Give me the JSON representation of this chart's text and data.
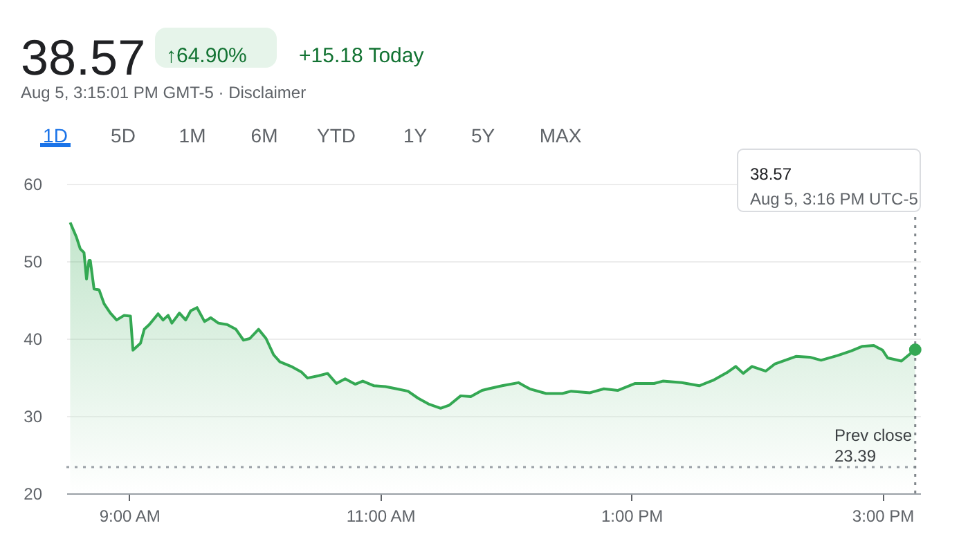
{
  "chart_data": {
    "type": "area",
    "title": "38.57",
    "annotations": [
      "↑64.90%",
      "+15.18 Today",
      "Aug 5, 3:15:01 PM GMT-5 · Disclaimer",
      "1D",
      "5D",
      "1M",
      "6M",
      "YTD",
      "1Y",
      "5Y",
      "MAX",
      "38.57",
      "Aug 5, 3:16 PM UTC-5",
      "23.39"
    ],
    "x": [
      8.53,
      8.58,
      8.61,
      8.64,
      8.66,
      8.68,
      8.69,
      8.72,
      8.76,
      8.8,
      8.85,
      8.9,
      8.96,
      9.01,
      9.03,
      9.09,
      9.12,
      9.16,
      9.23,
      9.27,
      9.31,
      9.34,
      9.4,
      9.45,
      9.49,
      9.54,
      9.6,
      9.65,
      9.71,
      9.78,
      9.85,
      9.91,
      9.96,
      10.03,
      10.09,
      10.15,
      10.2,
      10.29,
      10.37,
      10.42,
      10.51,
      10.58,
      10.65,
      10.72,
      10.8,
      10.86,
      10.95,
      11.04,
      11.13,
      11.22,
      11.3,
      11.39,
      11.48,
      11.55,
      11.64,
      11.72,
      11.81,
      11.86,
      11.97,
      12.1,
      12.19,
      12.32,
      12.45,
      12.52,
      12.67,
      12.78,
      12.89,
      13.03,
      13.18,
      13.25,
      13.4,
      13.54,
      13.65,
      13.76,
      13.83,
      13.89,
      13.96,
      14.07,
      14.14,
      14.31,
      14.42,
      14.51,
      14.64,
      14.75,
      14.84,
      14.93,
      15.0,
      15.04,
      15.15,
      15.26
    ],
    "series": [
      {
        "color": "#34a853",
        "values": [
          55.0,
          53.1,
          51.6,
          51.1,
          47.7,
          50.1,
          50.1,
          46.4,
          46.3,
          44.5,
          43.3,
          42.4,
          43.0,
          42.9,
          38.5,
          39.4,
          41.2,
          41.8,
          43.2,
          42.4,
          43.0,
          42.0,
          43.3,
          42.4,
          43.6,
          44.0,
          42.2,
          42.7,
          42.0,
          41.8,
          41.2,
          39.8,
          40.0,
          41.2,
          40.0,
          37.9,
          37.0,
          36.4,
          35.7,
          34.9,
          35.2,
          35.5,
          34.2,
          34.8,
          34.1,
          34.5,
          33.9,
          33.8,
          33.5,
          33.2,
          32.3,
          31.5,
          31.0,
          31.4,
          32.6,
          32.5,
          33.3,
          33.5,
          33.9,
          34.3,
          33.5,
          32.9,
          32.9,
          33.2,
          33.0,
          33.5,
          33.3,
          34.2,
          34.2,
          34.5,
          34.3,
          33.9,
          34.6,
          35.6,
          36.4,
          35.5,
          36.4,
          35.8,
          36.7,
          37.7,
          37.6,
          37.2,
          37.8,
          38.4,
          39.0,
          39.1,
          38.5,
          37.5,
          37.1,
          38.57
        ]
      }
    ],
    "xlim": [
      8.5,
      15.3
    ],
    "xticks": [
      {
        "value": 9,
        "label": "9:00 AM"
      },
      {
        "value": 11,
        "label": "11:00 AM"
      },
      {
        "value": 13,
        "label": "1:00 PM"
      },
      {
        "value": 15,
        "label": "3:00 PM"
      }
    ],
    "ylim": [
      20,
      60
    ],
    "yticks": [
      20,
      30,
      40,
      50,
      60
    ],
    "grid": "y",
    "ref_lines": [
      {
        "axis": "y",
        "value": 23.39,
        "label": "Prev close",
        "color": "#9aa0a6",
        "line_style": "dotted"
      },
      {
        "axis": "x",
        "value": 15.26,
        "color": "#80868b",
        "line_style": "dotted"
      }
    ]
  }
}
